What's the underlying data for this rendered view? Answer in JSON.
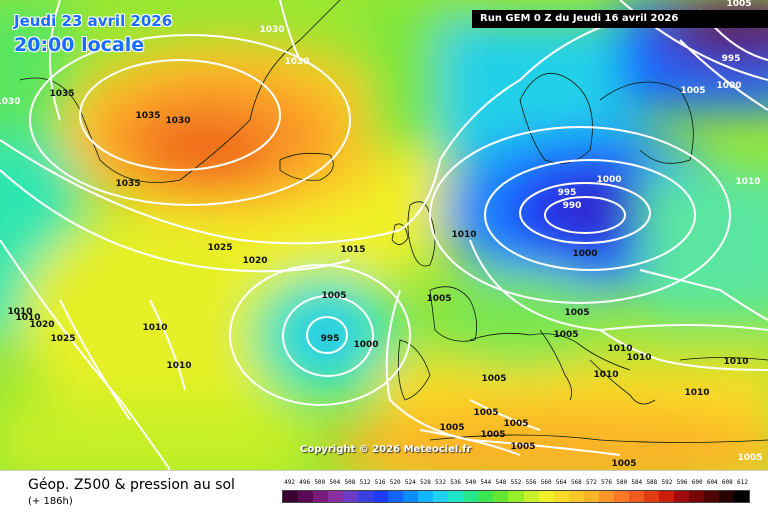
{
  "header": {
    "date_line": "Jeudi 23 avril 2026",
    "time_line": "20:00 locale",
    "run_info": "Run GEM 0 Z du Jeudi 16 avril 2026"
  },
  "copyright": "Copyright © 2026 Meteociel.fr",
  "footer": {
    "title": "Géop. Z500 & pression au sol",
    "subtitle": "(+ 186h)"
  },
  "isobar_labels": [
    {
      "text": "1030"
    },
    {
      "text": "1030"
    },
    {
      "text": "1030"
    },
    {
      "text": "1035"
    },
    {
      "text": "1035"
    },
    {
      "text": "1030"
    },
    {
      "text": "1035"
    },
    {
      "text": "1025"
    },
    {
      "text": "1020"
    },
    {
      "text": "1015"
    },
    {
      "text": "1010"
    },
    {
      "text": "1010"
    },
    {
      "text": "1020"
    },
    {
      "text": "1025"
    },
    {
      "text": "1010"
    },
    {
      "text": "1010"
    },
    {
      "text": "1005"
    },
    {
      "text": "995"
    },
    {
      "text": "1000"
    },
    {
      "text": "1005"
    },
    {
      "text": "1005"
    },
    {
      "text": "1005"
    },
    {
      "text": "1005"
    },
    {
      "text": "1010"
    },
    {
      "text": "1000"
    },
    {
      "text": "995"
    },
    {
      "text": "990"
    },
    {
      "text": "1000"
    },
    {
      "text": "1005"
    },
    {
      "text": "1005"
    },
    {
      "text": "1010"
    },
    {
      "text": "1010"
    },
    {
      "text": "1010"
    },
    {
      "text": "1010"
    },
    {
      "text": "1010"
    },
    {
      "text": "1005"
    },
    {
      "text": "1005"
    },
    {
      "text": "1005"
    },
    {
      "text": "1005"
    },
    {
      "text": "1005"
    },
    {
      "text": "1005"
    },
    {
      "text": "1000"
    },
    {
      "text": "995"
    },
    {
      "text": "1005"
    },
    {
      "text": "1010"
    }
  ],
  "legend": {
    "ticks": [
      "492",
      "496",
      "500",
      "504",
      "508",
      "512",
      "516",
      "520",
      "524",
      "528",
      "532",
      "536",
      "540",
      "544",
      "548",
      "552",
      "556",
      "560",
      "564",
      "568",
      "572",
      "576",
      "580",
      "584",
      "588",
      "592",
      "596",
      "600",
      "604",
      "608",
      "612"
    ],
    "colors": [
      "#3a0030",
      "#5a0a55",
      "#7a1a7a",
      "#8a2fa0",
      "#6a3cc8",
      "#3b40e0",
      "#1e3cff",
      "#1464ff",
      "#0a8cff",
      "#10b4ff",
      "#1ed2f0",
      "#1ee6c8",
      "#28e68c",
      "#3ce650",
      "#64e632",
      "#96f028",
      "#c8f028",
      "#f0f028",
      "#fadc28",
      "#fac828",
      "#fab428",
      "#fa9628",
      "#fa7828",
      "#f05a1e",
      "#e03c14",
      "#c81e0a",
      "#a00a0a",
      "#780505",
      "#500303",
      "#280101",
      "#000000"
    ]
  },
  "colors": {
    "header_text": "#1a6dff",
    "run_box_bg": "#000000",
    "isobar": "#ffffff"
  }
}
